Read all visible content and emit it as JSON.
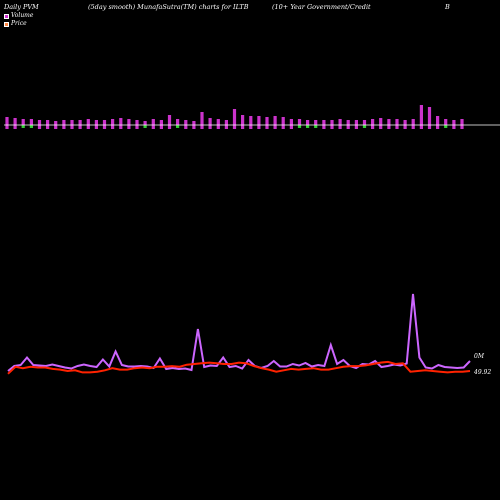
{
  "header": {
    "left": "Daily PVM",
    "mid1": "(5day smooth) MunafaSutra(TM) charts for ILTB",
    "mid2": "(10+ Year Government/Credit",
    "right": "B"
  },
  "legend": {
    "volume": "Volume",
    "price": "Price"
  },
  "labels": {
    "volume_value": "0M",
    "price_value": "49.92"
  },
  "colors": {
    "background": "#000000",
    "up_bar": "#cc33cc",
    "down_bar": "#33cc33",
    "volume_line": "#cc66ff",
    "price_line": "#ff2200",
    "baseline": "#ffffff"
  },
  "chart_data": {
    "type": "line",
    "bars": {
      "values": [
        8,
        7,
        6,
        6,
        5,
        5,
        4,
        5,
        5,
        5,
        6,
        5,
        5,
        6,
        7,
        6,
        5,
        4,
        6,
        5,
        10,
        6,
        5,
        4,
        13,
        7,
        6,
        5,
        16,
        10,
        9,
        9,
        8,
        9,
        8,
        6,
        6,
        5,
        5,
        5,
        5,
        6,
        5,
        5,
        5,
        6,
        7,
        6,
        6,
        5,
        6,
        20,
        18,
        9,
        6,
        5,
        6
      ],
      "down": [
        2,
        3,
        17,
        21,
        36,
        37,
        38,
        44,
        54
      ]
    },
    "volume_series": [
      8,
      18,
      20,
      35,
      20,
      19,
      18,
      21,
      18,
      15,
      13,
      18,
      21,
      18,
      16,
      31,
      17,
      47,
      20,
      17,
      17,
      18,
      17,
      14,
      33,
      12,
      14,
      12,
      13,
      10,
      92,
      16,
      19,
      18,
      35,
      16,
      18,
      13,
      30,
      18,
      14,
      18,
      28,
      17,
      17,
      22,
      19,
      24,
      17,
      20,
      18,
      60,
      22,
      30,
      18,
      14,
      22,
      21,
      28,
      16,
      18,
      21,
      19,
      23,
      162,
      35,
      15,
      13,
      20,
      16,
      15,
      14,
      15,
      28
    ],
    "price_series": [
      6,
      16,
      14,
      16,
      15,
      15,
      13,
      12,
      10,
      11,
      8,
      8,
      9,
      11,
      14,
      12,
      12,
      14,
      15,
      14,
      16,
      16,
      17,
      16,
      19,
      20,
      21,
      22,
      21,
      20,
      20,
      22,
      21,
      17,
      14,
      12,
      9,
      11,
      13,
      12,
      13,
      14,
      12,
      12,
      14,
      16,
      17,
      17,
      18,
      20,
      22,
      23,
      20,
      21,
      9,
      10,
      11,
      10,
      9,
      8,
      9,
      9,
      10
    ]
  }
}
